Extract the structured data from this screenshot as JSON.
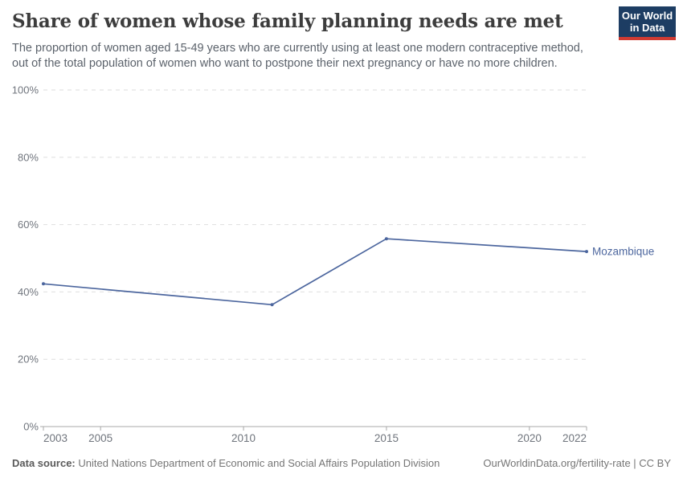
{
  "header": {
    "title": "Share of women whose family planning needs are met",
    "subtitle_lines": [
      "The proportion of women aged 15-49 years who are currently using at least one modern contraceptive method,",
      "out of the total population of women who want to postpone their next pregnancy or have no more children."
    ],
    "logo_line1": "Our World",
    "logo_line2": "in Data"
  },
  "chart_data": {
    "type": "line",
    "title": "Share of women whose family planning needs are met",
    "xlabel": "",
    "ylabel": "",
    "xlim": [
      2003,
      2022
    ],
    "ylim": [
      0,
      100
    ],
    "xticks": [
      2003,
      2005,
      2010,
      2015,
      2020,
      2022
    ],
    "yticks": [
      0,
      20,
      40,
      60,
      80,
      100
    ],
    "ytick_suffix": "%",
    "grid": "horizontal-dashed",
    "legend_position": "end-of-line-label",
    "series": [
      {
        "name": "Mozambique",
        "color": "#4c669e",
        "points": [
          {
            "year": 2003,
            "value": 42.4
          },
          {
            "year": 2011,
            "value": 36.2
          },
          {
            "year": 2015,
            "value": 55.8
          },
          {
            "year": 2022,
            "value": 52.0
          }
        ]
      }
    ]
  },
  "footer": {
    "source_label": "Data source:",
    "source_text": "United Nations Department of Economic and Social Affairs Population Division",
    "credit": "OurWorldinData.org/fertility-rate | CC BY"
  },
  "colors": {
    "line": "#4c669e",
    "logo_bg": "#1d3d63",
    "logo_stripe": "#d13b32",
    "grid": "#dedede",
    "axis": "#a8a8a8",
    "tick_text": "#70757d",
    "title_text": "#3d3d3d",
    "subtitle_text": "#5b626b"
  }
}
